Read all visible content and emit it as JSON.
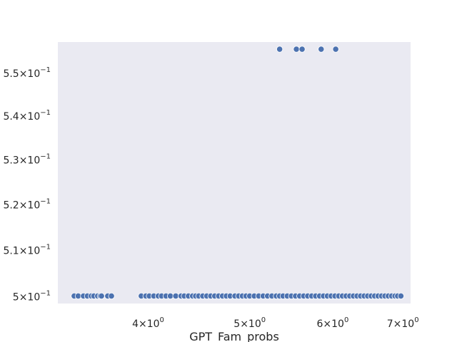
{
  "chart_data": {
    "type": "scatter",
    "title": "",
    "xlabel": "GPT_Fam_probs",
    "ylabel": "",
    "xscale": "log",
    "yscale": "log",
    "xlim": [
      3.28,
      7.12
    ],
    "ylim": [
      0.4984,
      0.5572
    ],
    "grid": false,
    "background": "#eaeaf2",
    "marker_color": "#4c72b0",
    "marker_edge": "#ffffff",
    "xticks": [
      {
        "value": 4,
        "base": "4",
        "exp": "0"
      },
      {
        "value": 5,
        "base": "5",
        "exp": "0"
      },
      {
        "value": 6,
        "base": "6",
        "exp": "0"
      },
      {
        "value": 7,
        "base": "7",
        "exp": "0"
      }
    ],
    "yticks": [
      {
        "value": 0.5,
        "base": "5",
        "exp": "−1"
      },
      {
        "value": 0.51,
        "base": "5.1",
        "exp": "−1"
      },
      {
        "value": 0.52,
        "base": "5.2",
        "exp": "−1"
      },
      {
        "value": 0.53,
        "base": "5.3",
        "exp": "−1"
      },
      {
        "value": 0.54,
        "base": "5.4",
        "exp": "−1"
      },
      {
        "value": 0.55,
        "base": "5.5",
        "exp": "−1"
      }
    ],
    "series": [
      {
        "x": [
          5.34,
          5.54,
          5.61,
          5.85,
          6.04
        ],
        "y": [
          0.5555,
          0.5555,
          0.5555,
          0.5555,
          0.5555
        ]
      },
      {
        "x": [
          3.4,
          3.43,
          3.47,
          3.5,
          3.53,
          3.55,
          3.58,
          3.6,
          3.61,
          3.66,
          3.69,
          3.94,
          3.98,
          4.01,
          4.05,
          4.09,
          4.12,
          4.16,
          4.2,
          4.25,
          4.3,
          4.33,
          4.37,
          4.41,
          4.44,
          4.47,
          4.51,
          4.55,
          4.59,
          4.63,
          4.67,
          4.71,
          4.75,
          4.79,
          4.84,
          4.88,
          4.92,
          4.96,
          5.0,
          5.05,
          5.1,
          5.15,
          5.2,
          5.25,
          5.3,
          5.34,
          5.38,
          5.43,
          5.48,
          5.53,
          5.58,
          5.63,
          5.68,
          5.73,
          5.78,
          5.83,
          5.88,
          5.93,
          5.98,
          6.03,
          6.08,
          6.13,
          6.18,
          6.23,
          6.28,
          6.33,
          6.38,
          6.43,
          6.48,
          6.53,
          6.58,
          6.63,
          6.68,
          6.73,
          6.78,
          6.83,
          6.88,
          6.92,
          6.97
        ],
        "y_value": 0.5
      }
    ]
  }
}
